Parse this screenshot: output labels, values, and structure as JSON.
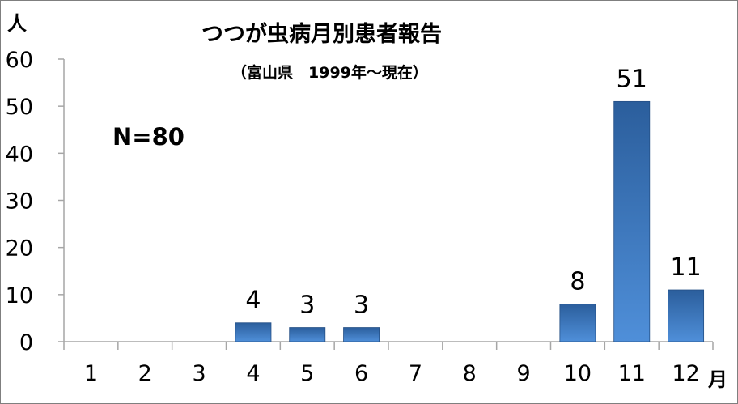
{
  "chart_data": {
    "type": "bar",
    "title": "つつが虫病月別患者報告",
    "subtitle": "（富山県　1999年～現在）",
    "annotation": "N=80",
    "ylabel": "人",
    "xlabel": "月",
    "categories": [
      "1",
      "2",
      "3",
      "4",
      "5",
      "6",
      "7",
      "8",
      "9",
      "10",
      "11",
      "12"
    ],
    "values": [
      0,
      0,
      0,
      4,
      3,
      3,
      0,
      0,
      0,
      8,
      51,
      11
    ],
    "data_labels": [
      "",
      "",
      "",
      "4",
      "3",
      "3",
      "",
      "",
      "",
      "8",
      "51",
      "11"
    ],
    "ylim": [
      0,
      60
    ],
    "yticks": [
      "0",
      "10",
      "20",
      "30",
      "40",
      "50",
      "60"
    ],
    "grid": false,
    "legend": "none",
    "colors": {
      "bar_dark": "#2b5e9c",
      "bar_light": "#4f8fd9",
      "axis": "#a6a6a6",
      "frame": "#7f7f7f"
    }
  }
}
